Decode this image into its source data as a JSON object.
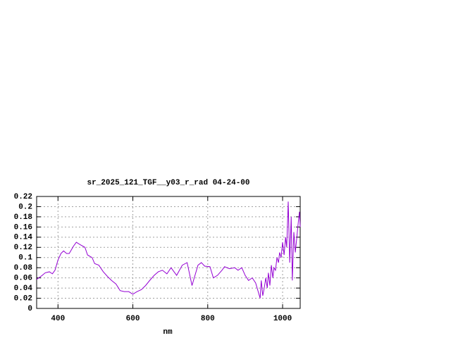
{
  "chart_data": {
    "type": "line",
    "title": "sr_2025_121_TGF__y03_r_rad 04-24-00",
    "x_label": "nm",
    "x": [
      343,
      358,
      366,
      377,
      385,
      392,
      400,
      408,
      415,
      423,
      430,
      442,
      449,
      460,
      472,
      479,
      491,
      498,
      509,
      521,
      532,
      543,
      555,
      566,
      577,
      589,
      600,
      611,
      623,
      634,
      645,
      657,
      668,
      679,
      691,
      702,
      717,
      732,
      745,
      758,
      764,
      774,
      783,
      792,
      806,
      815,
      826,
      838,
      845,
      858,
      872,
      881,
      891,
      900,
      909,
      919,
      928,
      936,
      940,
      943,
      947,
      951,
      955,
      959,
      962,
      966,
      970,
      974,
      977,
      981,
      985,
      989,
      992,
      996,
      1000,
      1004,
      1008,
      1011,
      1015,
      1019,
      1023,
      1026,
      1030,
      1034,
      1038,
      1042,
      1045,
      1047
    ],
    "series": [
      {
        "color": "#9400d3",
        "values": [
          0.057,
          0.065,
          0.07,
          0.072,
          0.068,
          0.075,
          0.095,
          0.108,
          0.113,
          0.108,
          0.108,
          0.123,
          0.13,
          0.125,
          0.12,
          0.105,
          0.1,
          0.088,
          0.085,
          0.072,
          0.063,
          0.055,
          0.048,
          0.035,
          0.033,
          0.033,
          0.028,
          0.033,
          0.037,
          0.045,
          0.055,
          0.065,
          0.072,
          0.075,
          0.068,
          0.08,
          0.065,
          0.085,
          0.09,
          0.045,
          0.06,
          0.085,
          0.09,
          0.083,
          0.082,
          0.06,
          0.065,
          0.075,
          0.082,
          0.078,
          0.08,
          0.075,
          0.08,
          0.065,
          0.055,
          0.06,
          0.05,
          0.03,
          0.02,
          0.055,
          0.025,
          0.04,
          0.06,
          0.04,
          0.07,
          0.045,
          0.085,
          0.06,
          0.08,
          0.075,
          0.1,
          0.09,
          0.11,
          0.1,
          0.13,
          0.105,
          0.14,
          0.12,
          0.21,
          0.09,
          0.18,
          0.055,
          0.15,
          0.11,
          0.14,
          0.17,
          0.19,
          0.16
        ]
      }
    ],
    "xlim": [
      343,
      1047
    ],
    "xticks": [
      400,
      600,
      800,
      1000
    ],
    "ylim": [
      0,
      0.22
    ],
    "yticks": [
      0,
      0.02,
      0.04,
      0.06,
      0.08,
      0.1,
      0.12,
      0.14,
      0.16,
      0.18,
      0.2,
      0.22
    ],
    "grid": true
  }
}
